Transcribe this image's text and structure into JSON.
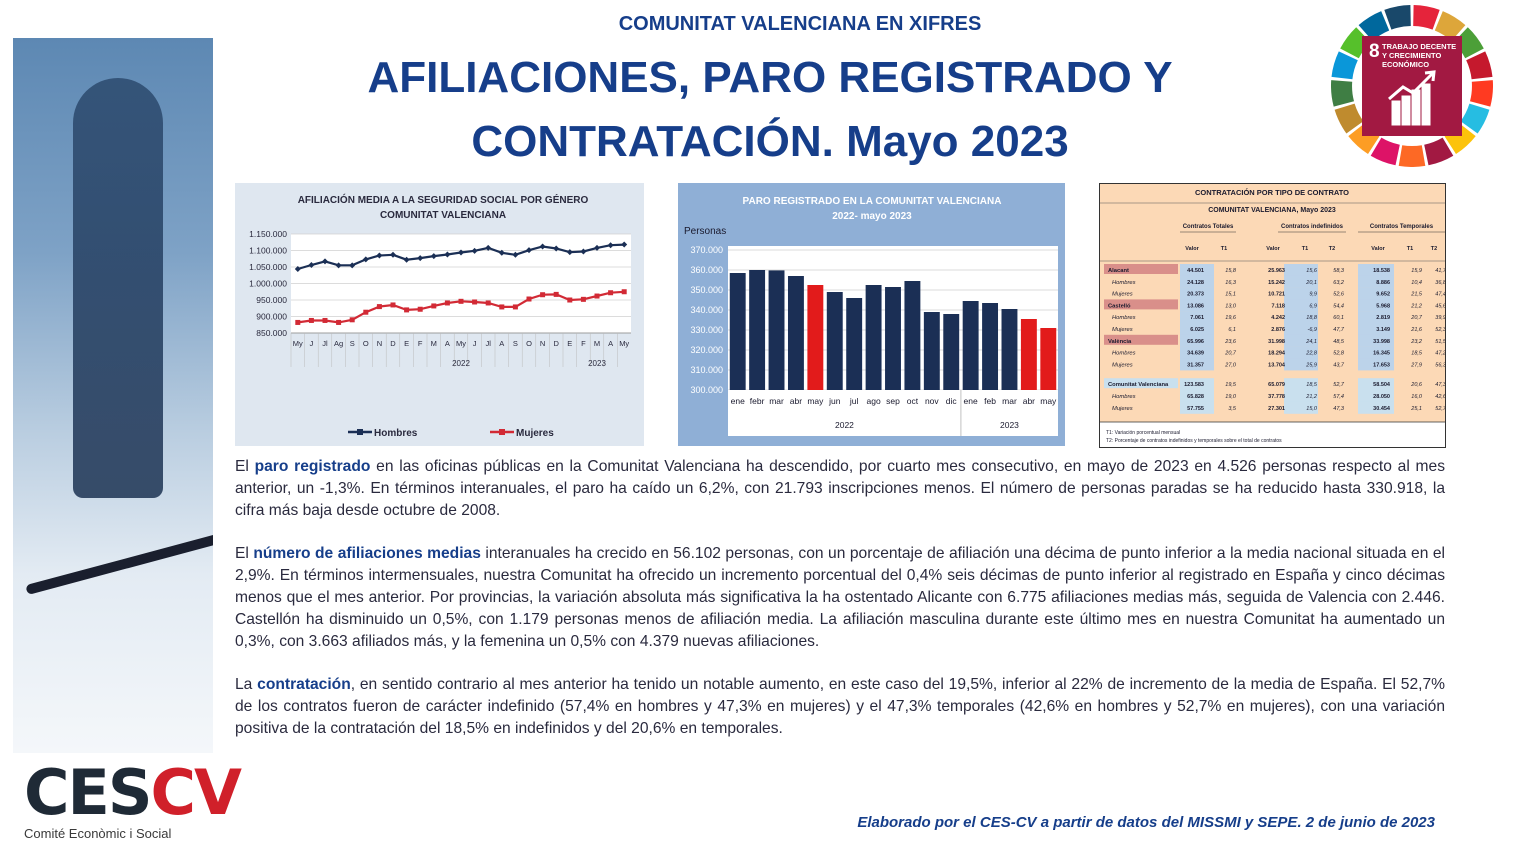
{
  "header": {
    "kicker": "COMUNITAT VALENCIANA EN XIFRES",
    "title_line1": "AFILIACIONES, PARO REGISTRADO Y",
    "title_line2": "CONTRATACIÓN. Mayo 2023"
  },
  "sdg": {
    "number": "8",
    "label_line1": "TRABAJO DECENTE",
    "label_line2": "Y CRECIMIENTO",
    "label_line3": "ECONÓMICO",
    "color": "#a21942",
    "icon": "growth-chart-icon"
  },
  "logo": {
    "ces": "CES",
    "cv": "CV",
    "sub": "Comité Econòmic i Social"
  },
  "chart_data": [
    {
      "type": "line",
      "title": "AFILIACIÓN MEDIA A LA SEGURIDAD SOCIAL POR GÉNERO",
      "subtitle": "COMUNITAT VALENCIANA",
      "categories": [
        "My",
        "J",
        "Jl",
        "Ag",
        "S",
        "O",
        "N",
        "D",
        "E",
        "F",
        "M",
        "A",
        "My",
        "J",
        "Jl",
        "A",
        "S",
        "O",
        "N",
        "D",
        "E",
        "F",
        "M",
        "A",
        "My"
      ],
      "year_labels": [
        "2022",
        "2023"
      ],
      "ylim": [
        850000,
        1150000
      ],
      "yticks": [
        "850.000",
        "900.000",
        "950.000",
        "1.000.000",
        "1.050.000",
        "1.100.000",
        "1.150.000"
      ],
      "grid": true,
      "legend_position": "bottom",
      "series": [
        {
          "name": "Hombres",
          "color": "#1b2f55",
          "values": [
            1044000,
            1056000,
            1067000,
            1055000,
            1055000,
            1073000,
            1085000,
            1087000,
            1072000,
            1077000,
            1083000,
            1088000,
            1094000,
            1099000,
            1108000,
            1093000,
            1087000,
            1101000,
            1112000,
            1106000,
            1095000,
            1097000,
            1108000,
            1116000,
            1118000
          ]
        },
        {
          "name": "Mujeres",
          "color": "#d22a35",
          "values": [
            882000,
            888000,
            888000,
            882000,
            890000,
            913000,
            930000,
            935000,
            920000,
            922000,
            932000,
            941000,
            946000,
            944000,
            941000,
            929000,
            929000,
            953000,
            966000,
            967000,
            950000,
            952000,
            962000,
            972000,
            975000
          ]
        }
      ]
    },
    {
      "type": "bar",
      "title": "PARO REGISTRADO EN LA COMUNITAT VALENCIANA",
      "subtitle": "2022- mayo 2023",
      "ylabel": "Personas",
      "categories": [
        "ene",
        "febr",
        "mar",
        "abr",
        "may",
        "jun",
        "jul",
        "ago",
        "sep",
        "oct",
        "nov",
        "dic",
        "ene",
        "feb",
        "mar",
        "abr",
        "may"
      ],
      "year_labels": [
        "2022",
        "2023"
      ],
      "ylim": [
        300000,
        370000
      ],
      "yticks": [
        "300.000",
        "310.000",
        "320.000",
        "330.000",
        "340.000",
        "350.000",
        "360.000",
        "370.000"
      ],
      "values": [
        358500,
        360000,
        359800,
        357000,
        352500,
        349000,
        346000,
        352500,
        351500,
        354500,
        339000,
        338000,
        344500,
        343500,
        340500,
        335500,
        331000
      ],
      "highlight": [
        4,
        15,
        16
      ],
      "bar_color": "#1b2f55",
      "highlight_color": "#e21b1b"
    },
    {
      "type": "table",
      "title": "CONTRATACIÓN POR TIPO DE CONTRATO",
      "subtitle": "COMUNITAT VALENCIANA, Mayo 2023",
      "group_headers": [
        "Contratos Totales",
        "Contratos indefinidos",
        "Contratos Temporales"
      ],
      "column_headers": [
        "Valor",
        "T1",
        "Valor",
        "T1",
        "T2",
        "Valor",
        "T1",
        "T2"
      ],
      "rows": [
        {
          "label": "Alacant",
          "head": true,
          "cells": [
            "44.501",
            "15,8",
            "25.963",
            "15,6",
            "58,3",
            "18.538",
            "15,9",
            "41,7"
          ]
        },
        {
          "label": "Hombres",
          "cells": [
            "24.128",
            "16,3",
            "15.242",
            "20,1",
            "63,2",
            "8.886",
            "10,4",
            "36,8"
          ]
        },
        {
          "label": "Mujeres",
          "cells": [
            "20.373",
            "15,1",
            "10.721",
            "9,9",
            "52,6",
            "9.652",
            "21,5",
            "47,4"
          ]
        },
        {
          "label": "Castelló",
          "head": true,
          "cells": [
            "13.086",
            "13,0",
            "7.118",
            "6,9",
            "54,4",
            "5.968",
            "21,2",
            "45,6"
          ]
        },
        {
          "label": "Hombres",
          "cells": [
            "7.061",
            "19,6",
            "4.242",
            "18,8",
            "60,1",
            "2.819",
            "20,7",
            "39,9"
          ]
        },
        {
          "label": "Mujeres",
          "cells": [
            "6.025",
            "6,1",
            "2.876",
            "-6,9",
            "47,7",
            "3.149",
            "21,6",
            "52,3"
          ]
        },
        {
          "label": "València",
          "head": true,
          "cells": [
            "65.996",
            "23,6",
            "31.998",
            "24,1",
            "48,5",
            "33.998",
            "23,2",
            "51,5"
          ]
        },
        {
          "label": "Hombres",
          "cells": [
            "34.639",
            "20,7",
            "18.294",
            "22,8",
            "52,8",
            "16.345",
            "18,5",
            "47,2"
          ]
        },
        {
          "label": "Mujeres",
          "cells": [
            "31.357",
            "27,0",
            "13.704",
            "25,9",
            "43,7",
            "17.653",
            "27,9",
            "56,3"
          ]
        },
        {
          "label": "Comunitat Valenciana",
          "head": true,
          "total": true,
          "cells": [
            "123.583",
            "19,5",
            "65.079",
            "18,5",
            "52,7",
            "58.504",
            "20,6",
            "47,3"
          ]
        },
        {
          "label": "Hombres",
          "total": true,
          "cells": [
            "65.828",
            "19,0",
            "37.778",
            "21,2",
            "57,4",
            "28.050",
            "16,0",
            "42,6"
          ]
        },
        {
          "label": "Mujeres",
          "total": true,
          "cells": [
            "57.755",
            "3,5",
            "27.301",
            "15,0",
            "47,3",
            "30.454",
            "25,1",
            "52,7"
          ]
        }
      ],
      "notes": [
        "T1: Variación porcentual mensual",
        "T2: Porcentaje de contratos indefinidos y temporales sobre el total de contratos"
      ]
    }
  ],
  "body": {
    "p1_lead": "El ",
    "p1_bold": "paro registrado",
    "p1_rest": " en las oficinas públicas en la Comunitat Valenciana ha descendido, por cuarto mes consecutivo, en mayo de 2023 en 4.526 personas respecto al mes anterior, un -1,3%. En términos interanuales, el paro ha caído un 6,2%, con 21.793 inscripciones menos. El número de personas paradas se ha reducido hasta 330.918, la cifra más baja desde octubre de 2008.",
    "p2_lead": "El ",
    "p2_bold": "número de afiliaciones medias",
    "p2_rest": " interanuales ha crecido en 56.102 personas, con un porcentaje de afiliación una décima de punto inferior a la media nacional situada en el 2,9%. En términos intermensuales, nuestra Comunitat ha ofrecido un incremento porcentual del 0,4% seis décimas de punto inferior al registrado en España y cinco décimas menos que el mes anterior. Por provincias, la variación absoluta más significativa la ha ostentado Alicante con 6.775 afiliaciones medias más, seguida de Valencia con 2.446. Castellón ha disminuido un 0,5%, con 1.179 personas menos de afiliación media. La afiliación masculina durante este último mes en nuestra Comunitat ha aumentado un 0,3%, con 3.663 afiliados más, y la femenina un 0,5% con 4.379 nuevas afiliaciones.",
    "p3_lead": "La ",
    "p3_bold": "contratación",
    "p3_rest": ", en sentido contrario al mes anterior ha tenido un notable aumento, en este caso del 19,5%, inferior al 22% de incremento de la media de España. El 52,7% de los contratos fueron de carácter indefinido (57,4% en hombres y 47,3% en mujeres) y el 47,3% temporales (42,6% en hombres y 52,7% en mujeres), con una variación positiva de la contratación del 18,5% en indefinidos y del 20,6% en temporales."
  },
  "footer": "Elaborado por el CES-CV a partir de datos del MISSMI y SEPE. 2 de junio de 2023"
}
